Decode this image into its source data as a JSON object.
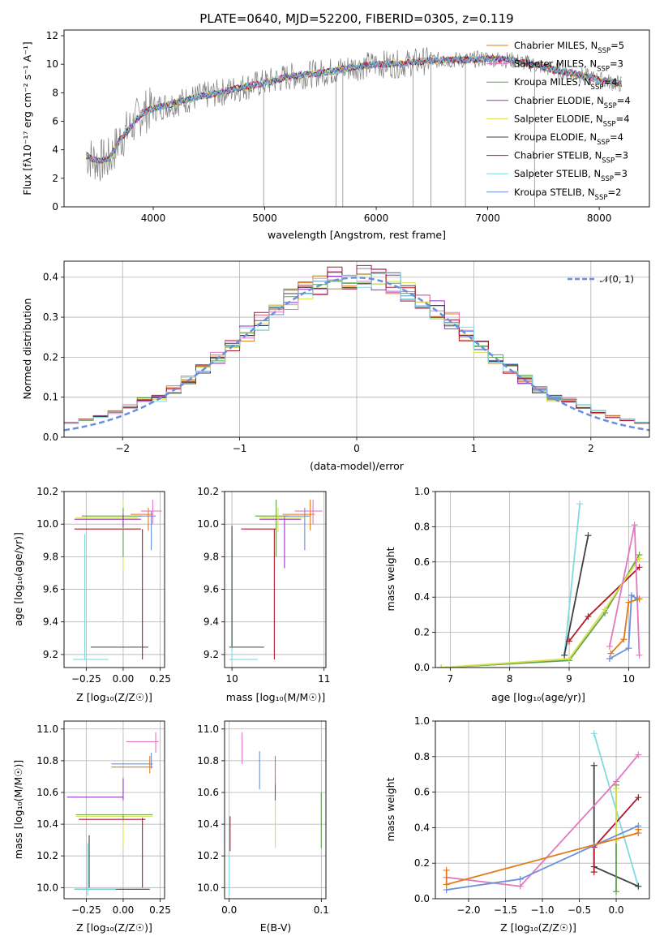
{
  "figure_title": "PLATE=0640, MJD=52200, FIBERID=0305, z=0.119",
  "legend_spectrum": [
    {
      "text": "Chabrier MILES, N",
      "sub": "SSP",
      "suffix": "=5",
      "color": "#1f77b4"
    },
    {
      "text": "Salpeter MILES, N",
      "sub": "SSP",
      "suffix": "=3",
      "color": "#e377c2"
    },
    {
      "text": "Kroupa MILES, N",
      "sub": "SSP",
      "suffix": "=4",
      "color": "#e07b18"
    },
    {
      "text": "Chabrier ELODIE, N",
      "sub": "SSP",
      "suffix": "=4",
      "color": "#5fa34a"
    },
    {
      "text": "Salpeter ELODIE, N",
      "sub": "SSP",
      "suffix": "=4",
      "color": "#9b30c8"
    },
    {
      "text": "Kroupa ELODIE, N",
      "sub": "SSP",
      "suffix": "=4",
      "color": "#dbe04a"
    },
    {
      "text": "Chabrier STELIB, N",
      "sub": "SSP",
      "suffix": "=3",
      "color": "#404040"
    },
    {
      "text": "Salpeter STELIB, N",
      "sub": "SSP",
      "suffix": "=3",
      "color": "#b2182b"
    },
    {
      "text": "Kroupa STELIB, N",
      "sub": "SSP",
      "suffix": "=2",
      "color": "#7fdbe0"
    }
  ],
  "legend_hist": "𝒩(0, 1)",
  "series_colors": [
    "#6a8fdc",
    "#e07b18",
    "#5fa34a",
    "#e377c2",
    "#9b30c8",
    "#dbe04a",
    "#404040",
    "#b2182b",
    "#7fdbe0"
  ],
  "chart_data": [
    {
      "type": "line",
      "name": "spectrum",
      "xlabel": "wavelength [Angstrom, rest frame]",
      "ylabel": "Flux [fλ10⁻¹⁷ erg cm⁻² s⁻¹ A⁻¹]",
      "xlim": [
        3200,
        8450
      ],
      "ylim": [
        0,
        12.4
      ],
      "xticks": [
        4000,
        5000,
        6000,
        7000,
        8000
      ],
      "yticks": [
        0,
        2,
        4,
        6,
        8,
        10,
        12
      ],
      "model_points": {
        "x": [
          3400,
          3500,
          3600,
          3700,
          3800,
          3900,
          4000,
          4200,
          4400,
          4600,
          4800,
          5000,
          5200,
          5400,
          5600,
          5800,
          6000,
          6200,
          6400,
          6600,
          6800,
          7000,
          7200,
          7400,
          7600,
          7800,
          8000,
          8200
        ],
        "y": [
          3.6,
          3.2,
          3.3,
          4.7,
          5.6,
          6.6,
          6.9,
          7.3,
          7.7,
          8.0,
          8.4,
          8.7,
          9.1,
          9.3,
          9.5,
          9.8,
          10.0,
          10.0,
          10.2,
          10.3,
          10.3,
          10.4,
          10.3,
          10.0,
          9.6,
          9.3,
          8.9,
          8.6
        ]
      }
    },
    {
      "type": "line",
      "name": "residual-histogram",
      "xlabel": "(data-model)/error",
      "ylabel": "Normed distribution",
      "xlim": [
        -2.5,
        2.5
      ],
      "ylim": [
        0,
        0.44
      ],
      "xticks": [
        -2,
        -1,
        0,
        1,
        2
      ],
      "yticks": [
        0.0,
        0.1,
        0.2,
        0.3,
        0.4
      ],
      "normal_curve": {
        "mean": 0,
        "sigma": 1
      }
    },
    {
      "type": "scatter",
      "name": "age-vs-Z",
      "xlabel": "Z [log₁₀(Z/Z☉)]",
      "ylabel": "age  [log₁₀(age/yr)]",
      "xlim": [
        -0.4,
        0.28
      ],
      "ylim": [
        9.12,
        10.2
      ],
      "xticks": [
        -0.25,
        0.0,
        0.25
      ],
      "yticks": [
        9.2,
        9.4,
        9.6,
        9.8,
        10.0,
        10.2
      ]
    },
    {
      "type": "scatter",
      "name": "age-vs-mass",
      "xlabel": "mass [log₁₀(M/M☉)]",
      "xlim": [
        9.92,
        11.02
      ],
      "ylim": [
        9.12,
        10.2
      ],
      "xticks": [
        10,
        11
      ],
      "yticks": [
        9.2,
        9.4,
        9.6,
        9.8,
        10.0,
        10.2
      ]
    },
    {
      "type": "line",
      "name": "weight-vs-age",
      "xlabel": "age  [log₁₀(age/yr)]",
      "ylabel": "mass weight",
      "xlim": [
        6.75,
        10.35
      ],
      "ylim": [
        0,
        1.0
      ],
      "xticks": [
        7,
        8,
        9,
        10
      ],
      "yticks": [
        0.0,
        0.2,
        0.4,
        0.6,
        0.8,
        1.0
      ],
      "series": [
        {
          "color_index": 8,
          "x": [
            8.92,
            9.18
          ],
          "y": [
            0.07,
            0.93
          ]
        },
        {
          "color_index": 6,
          "x": [
            8.92,
            9.32
          ],
          "y": [
            0.07,
            0.75
          ]
        },
        {
          "color_index": 7,
          "x": [
            9.0,
            9.32,
            10.18
          ],
          "y": [
            0.15,
            0.29,
            0.57
          ]
        },
        {
          "color_index": 2,
          "x": [
            6.85,
            9.0,
            9.6,
            10.18
          ],
          "y": [
            0.0,
            0.04,
            0.31,
            0.64
          ]
        },
        {
          "color_index": 5,
          "x": [
            6.85,
            9.0,
            9.6,
            10.18
          ],
          "y": [
            0.0,
            0.05,
            0.33,
            0.62
          ]
        },
        {
          "color_index": 3,
          "x": [
            9.68,
            10.1,
            10.18
          ],
          "y": [
            0.12,
            0.81,
            0.07
          ]
        },
        {
          "color_index": 0,
          "x": [
            9.68,
            10.0,
            10.05,
            10.15
          ],
          "y": [
            0.05,
            0.11,
            0.41,
            0.39
          ]
        },
        {
          "color_index": 1,
          "x": [
            9.7,
            9.92,
            10.0,
            10.18
          ],
          "y": [
            0.08,
            0.16,
            0.37,
            0.39
          ]
        }
      ]
    },
    {
      "type": "scatter",
      "name": "mass-vs-Z",
      "xlabel": "Z [log₁₀(Z/Z☉)]",
      "ylabel": "mass [log₁₀(M/M☉)]",
      "xlim": [
        -0.4,
        0.28
      ],
      "ylim": [
        9.93,
        11.05
      ],
      "xticks": [
        -0.25,
        0.0,
        0.25
      ],
      "yticks": [
        10.0,
        10.2,
        10.4,
        10.6,
        10.8,
        11.0
      ]
    },
    {
      "type": "scatter",
      "name": "mass-vs-EBV",
      "xlabel": "E(B-V)",
      "xlim": [
        -0.005,
        0.105
      ],
      "ylim": [
        9.93,
        11.05
      ],
      "xticks": [
        0.0,
        0.1
      ],
      "yticks": [
        10.0,
        10.2,
        10.4,
        10.6,
        10.8,
        11.0
      ]
    },
    {
      "type": "line",
      "name": "weight-vs-Z",
      "xlabel": "Z [log₁₀(Z/Z☉)]",
      "ylabel": "mass weight",
      "xlim": [
        -2.45,
        0.45
      ],
      "ylim": [
        0,
        1.0
      ],
      "xticks": [
        -2.0,
        -1.5,
        -1.0,
        -0.5,
        0.0
      ],
      "yticks": [
        0.0,
        0.2,
        0.4,
        0.6,
        0.8,
        1.0
      ],
      "series": [
        {
          "color_index": 8,
          "x": [
            -0.3,
            0.3
          ],
          "y": [
            0.93,
            0.07
          ]
        },
        {
          "color_index": 6,
          "x": [
            -0.3,
            -0.3,
            0.3
          ],
          "y": [
            0.75,
            0.18,
            0.07
          ]
        },
        {
          "color_index": 7,
          "x": [
            -0.3,
            -0.3,
            0.3
          ],
          "y": [
            0.15,
            0.29,
            0.57
          ]
        },
        {
          "color_index": 2,
          "x": [
            0.0,
            0.0
          ],
          "y": [
            0.64,
            0.04
          ]
        },
        {
          "color_index": 5,
          "x": [
            0.0,
            0.0
          ],
          "y": [
            0.62,
            0.33
          ]
        },
        {
          "color_index": 3,
          "x": [
            -2.3,
            -1.3,
            0.0,
            0.3
          ],
          "y": [
            0.12,
            0.07,
            0.66,
            0.81
          ]
        },
        {
          "color_index": 0,
          "x": [
            -2.3,
            -1.3,
            -0.3,
            0.3
          ],
          "y": [
            0.05,
            0.11,
            0.3,
            0.41
          ]
        },
        {
          "color_index": 1,
          "x": [
            -2.3,
            -2.3,
            0.3,
            0.3
          ],
          "y": [
            0.16,
            0.08,
            0.37,
            0.39
          ]
        }
      ]
    }
  ]
}
